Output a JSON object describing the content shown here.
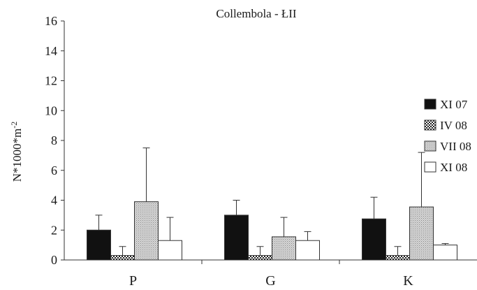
{
  "chart_data": {
    "type": "bar",
    "title": "Collembola - ŁII",
    "ylabel": "N*1000*m",
    "ylabel_sup": "-2",
    "xlabel": "",
    "ylim": [
      0,
      16
    ],
    "yticks": [
      0,
      2,
      4,
      6,
      8,
      10,
      12,
      14,
      16
    ],
    "categories": [
      "P",
      "G",
      "K"
    ],
    "legend_position": "right",
    "series": [
      {
        "name": "XI 07",
        "values": [
          2.0,
          3.0,
          2.75
        ],
        "errors": [
          1.0,
          1.0,
          1.45
        ],
        "fill": "solid",
        "color": "#111111"
      },
      {
        "name": "IV 08",
        "values": [
          0.3,
          0.3,
          0.3
        ],
        "errors": [
          0.6,
          0.6,
          0.6
        ],
        "fill": "checker",
        "color": "#444444"
      },
      {
        "name": "VII 08",
        "values": [
          3.9,
          1.55,
          3.55
        ],
        "errors": [
          3.6,
          1.3,
          3.65
        ],
        "fill": "dots",
        "color": "#b8b8b8"
      },
      {
        "name": "XI 08",
        "values": [
          1.3,
          1.3,
          1.0
        ],
        "errors": [
          1.55,
          0.6,
          0.1
        ],
        "fill": "white",
        "color": "#ffffff"
      }
    ]
  }
}
